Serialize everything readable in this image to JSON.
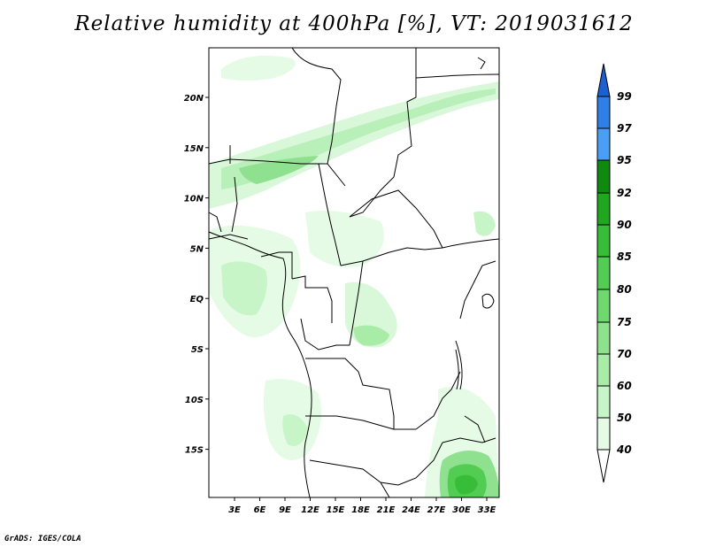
{
  "title": "Relative humidity at 400hPa [%], VT: 2019031612",
  "credit": "GrADS: IGES/COLA",
  "map": {
    "lon_ticks": [
      "3E",
      "6E",
      "9E",
      "12E",
      "15E",
      "18E",
      "21E",
      "24E",
      "27E",
      "30E",
      "33E"
    ],
    "lat_ticks": [
      "20N",
      "15N",
      "10N",
      "5N",
      "EQ",
      "5S",
      "10S",
      "15S"
    ]
  },
  "colorbar": {
    "levels": [
      "40",
      "50",
      "60",
      "70",
      "75",
      "80",
      "85",
      "90",
      "92",
      "95",
      "97",
      "99"
    ],
    "colors": [
      "#ffffff",
      "#e6fbe6",
      "#c8f5c8",
      "#a8eca8",
      "#8ee28e",
      "#6fd86f",
      "#52cc52",
      "#37bd37",
      "#1fa81f",
      "#0e8a0e",
      "#4b9ef5",
      "#2f7fe6",
      "#1b5fd0"
    ]
  }
}
